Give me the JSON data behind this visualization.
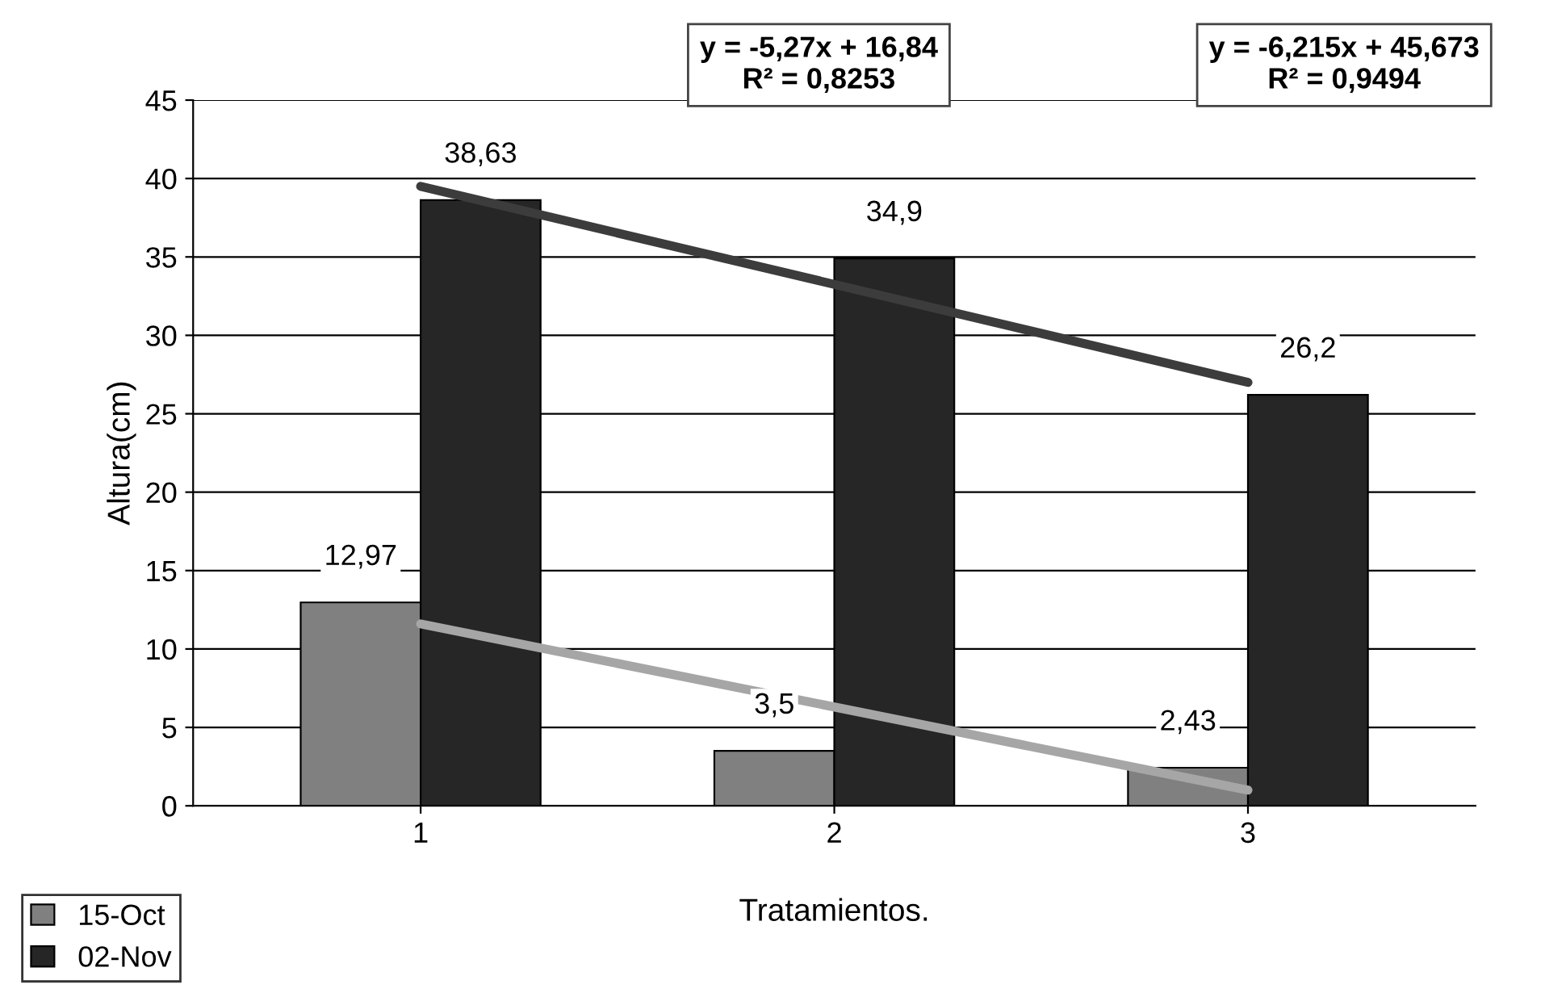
{
  "chart_data": {
    "type": "bar",
    "xlabel": "Tratamientos.",
    "ylabel": "Altura(cm)",
    "categories": [
      "1",
      "2",
      "3"
    ],
    "series": [
      {
        "name": "15-Oct",
        "color": "#808080",
        "values": [
          12.97,
          3.5,
          2.43
        ],
        "value_labels": [
          "12,97",
          "3,5",
          "2,43"
        ]
      },
      {
        "name": "02-Nov",
        "color": "#262626",
        "values": [
          38.63,
          34.9,
          26.2
        ],
        "value_labels": [
          "38,63",
          "34,9",
          "26,2"
        ]
      },
      {
        "type": "line",
        "x": [
          "1",
          "3"
        ],
        "color": "#a6a6a6",
        "values": [
          11.6,
          1.0
        ]
      },
      {
        "type": "line",
        "x": [
          "1",
          "3"
        ],
        "color": "#3c3c3c",
        "values": [
          39.5,
          27.0
        ]
      }
    ],
    "annotations": [
      "y = -5,27x + 16,84\nR² = 0,8253",
      "y = -6,215x + 45,673\nR² = 0,9494"
    ],
    "ylim": [
      0,
      45
    ],
    "yticks": [
      0,
      5,
      10,
      15,
      20,
      25,
      30,
      35,
      40,
      45
    ],
    "grid": "y",
    "legend": "bottom left"
  }
}
